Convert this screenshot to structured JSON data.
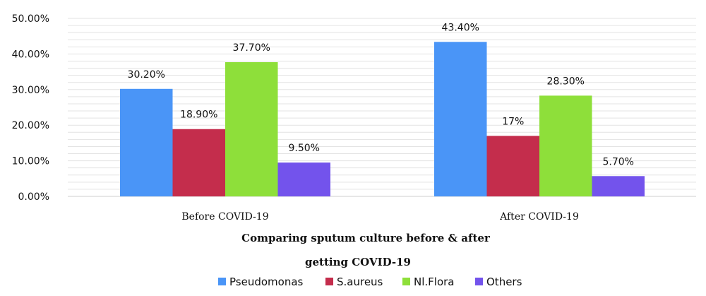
{
  "chart_data": {
    "type": "bar",
    "title_lines": [
      "Comparing sputum culture before & after",
      "getting COVID-19"
    ],
    "xlabel": "",
    "ylabel": "",
    "categories": [
      "Before COVID-19",
      "After COVID-19"
    ],
    "series": [
      {
        "name": "Pseudomonas",
        "color": "#4A95F7",
        "values": [
          30.2,
          43.4
        ],
        "labels": [
          "30.20%",
          "43.40%"
        ]
      },
      {
        "name": "S.aureus",
        "color": "#C42D4C",
        "values": [
          18.9,
          17.0
        ],
        "labels": [
          "18.90%",
          "17%"
        ]
      },
      {
        "name": "Nl.Flora",
        "color": "#8EDF3A",
        "values": [
          37.7,
          28.3
        ],
        "labels": [
          "37.70%",
          "28.30%"
        ]
      },
      {
        "name": "Others",
        "color": "#7353EC",
        "values": [
          9.5,
          5.7
        ],
        "labels": [
          "9.50%",
          "5.70%"
        ]
      }
    ],
    "ylim": [
      0,
      50
    ],
    "yticks": [
      0,
      10,
      20,
      30,
      40,
      50
    ],
    "ytick_labels": [
      "0.00%",
      "10.00%",
      "20.00%",
      "30.00%",
      "40.00%",
      "50.00%"
    ],
    "grid": true,
    "legend_position": "bottom"
  }
}
